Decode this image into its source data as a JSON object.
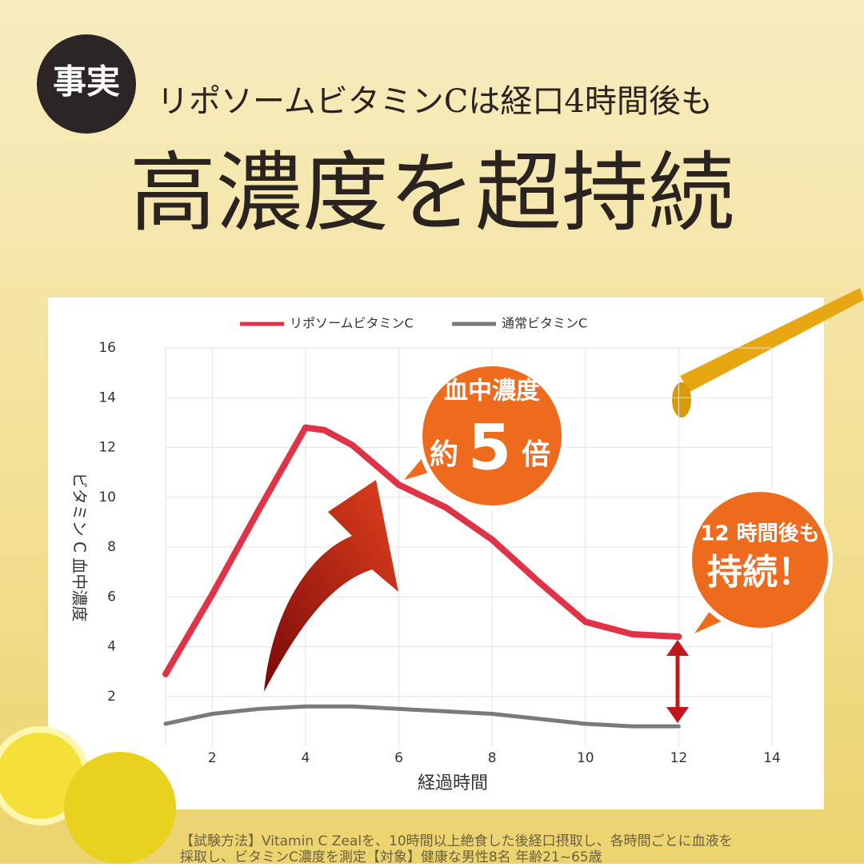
{
  "header": {
    "badge": "事実",
    "subtitle": "リポソームビタミンCは経口4時間後も",
    "title": "高濃度を超持続"
  },
  "chart_data": {
    "type": "line",
    "x": [
      1,
      2,
      3,
      4,
      4.4,
      5,
      6,
      7,
      8,
      9,
      10,
      11,
      12
    ],
    "series": [
      {
        "name": "リポソームビタミンC",
        "color": "#e03348",
        "values": [
          2.9,
          6.1,
          9.5,
          12.8,
          12.7,
          12.1,
          10.5,
          9.6,
          8.3,
          6.6,
          5.0,
          4.5,
          4.4
        ]
      },
      {
        "name": "通常ビタミンC",
        "color": "#7a7a7a",
        "values": [
          0.9,
          1.3,
          1.5,
          1.6,
          1.6,
          1.6,
          1.5,
          1.4,
          1.3,
          1.1,
          0.9,
          0.8,
          0.8
        ]
      }
    ],
    "xlim": [
      1,
      14
    ],
    "xticks": [
      2,
      4,
      6,
      8,
      10,
      12,
      14
    ],
    "ylim": [
      0,
      16
    ],
    "yticks": [
      2,
      4,
      6,
      8,
      10,
      12,
      14,
      16
    ],
    "grid": true,
    "x_label": "経過時間",
    "y_label": "ビタミン C 血中濃度"
  },
  "callouts": [
    {
      "line1": "血中濃度",
      "prefix": "約",
      "number": "5",
      "suffix": "倍"
    },
    {
      "line1": "12 時間後も",
      "line2": "持続！"
    }
  ],
  "footnote": [
    "【試験方法】Vitamin C Zealを、10時間以上絶食した後経口摂取し、各時間ごとに血液を",
    "採取し、ビタミンC濃度を測定【対象】健康な男性8名 年齢21~65歳"
  ]
}
